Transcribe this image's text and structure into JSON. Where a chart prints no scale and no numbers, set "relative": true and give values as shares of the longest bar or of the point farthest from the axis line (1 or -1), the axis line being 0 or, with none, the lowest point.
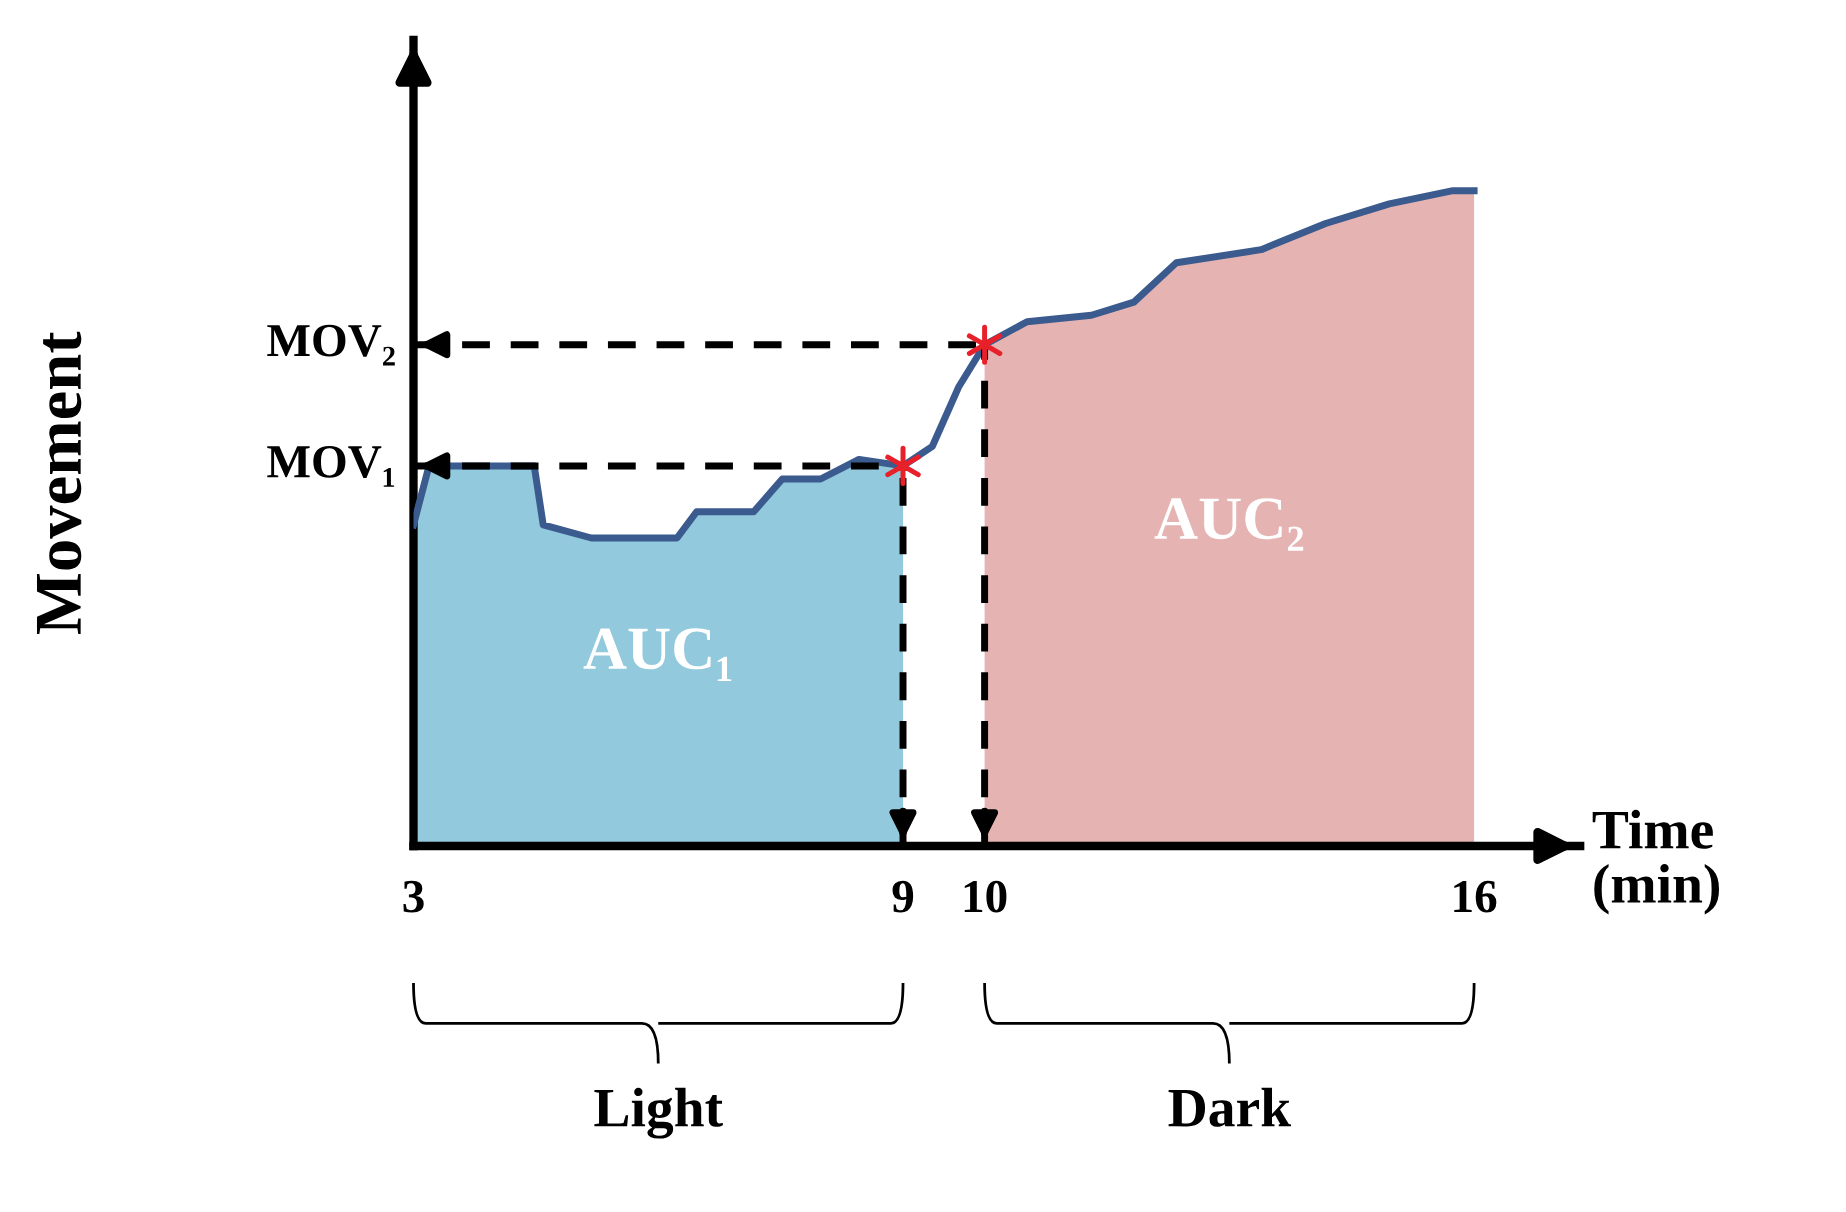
{
  "chart_data": {
    "type": "line",
    "relative": true,
    "xlabel": "Time\n(min)",
    "ylabel": "Movement",
    "xlim": [
      3,
      17.3
    ],
    "xticks": [
      3,
      9,
      10,
      16
    ],
    "grid": false,
    "legend": false,
    "series": [
      {
        "name": "AUC₁",
        "type": "area",
        "color": "#92c9dc",
        "x": [
          3,
          3.19,
          4.48,
          4.59,
          5.18,
          6.23,
          6.47,
          7.17,
          7.52,
          7.99,
          8.46,
          9
        ],
        "values": [
          0.49,
          0.58,
          0.58,
          0.49,
          0.47,
          0.47,
          0.51,
          0.51,
          0.56,
          0.56,
          0.59,
          0.58
        ]
      },
      {
        "name": "AUC₂",
        "type": "area",
        "color": "#e6b3b3",
        "x": [
          10,
          10.52,
          11.31,
          11.83,
          12.35,
          13.39,
          14.18,
          14.96,
          15.74,
          16
        ],
        "values": [
          0.765,
          0.8,
          0.81,
          0.83,
          0.89,
          0.91,
          0.95,
          0.98,
          1.0,
          1.0
        ]
      },
      {
        "color": "#3b5b8f",
        "x": [
          3,
          3.19,
          4.48,
          4.59,
          5.18,
          6.23,
          6.47,
          7.17,
          7.52,
          7.99,
          8.46,
          9,
          9.36,
          9.68,
          10,
          10.52,
          11.31,
          11.83,
          12.35,
          13.39,
          14.18,
          14.96,
          15.74,
          16
        ],
        "values": [
          0.49,
          0.58,
          0.58,
          0.49,
          0.47,
          0.47,
          0.51,
          0.51,
          0.56,
          0.56,
          0.59,
          0.58,
          0.61,
          0.7,
          0.765,
          0.8,
          0.81,
          0.83,
          0.89,
          0.91,
          0.95,
          0.98,
          1.0,
          1.0
        ]
      },
      {
        "type": "scatter",
        "color": "#e8202a",
        "marker": "cross",
        "x": [
          9,
          10
        ],
        "values": [
          0.58,
          0.765
        ]
      }
    ],
    "ref_lines": [
      {
        "axis": "y",
        "value": 0.58,
        "label": "MOV₁",
        "line_style": "dashed",
        "color": "#000000"
      },
      {
        "axis": "y",
        "value": 0.765,
        "label": "MOV₂",
        "line_style": "dashed",
        "color": "#000000"
      },
      {
        "axis": "x",
        "value": 9,
        "line_style": "dashed",
        "color": "#000000"
      },
      {
        "axis": "x",
        "value": 10,
        "line_style": "dashed",
        "color": "#000000"
      }
    ],
    "annotations": [
      "Light",
      "Dark"
    ]
  }
}
